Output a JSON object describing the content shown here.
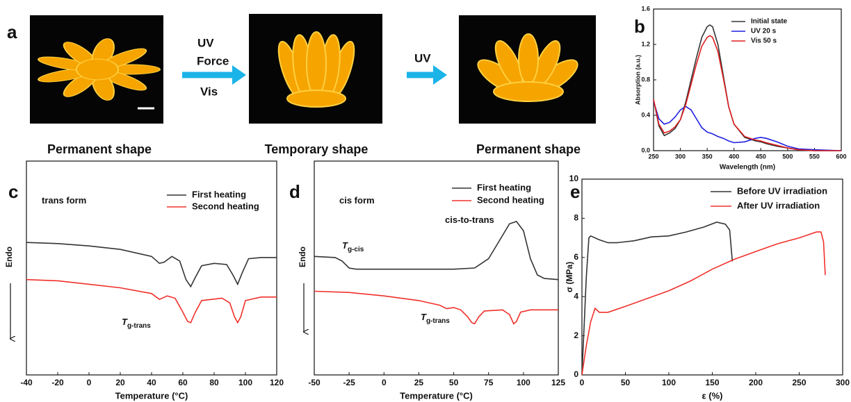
{
  "panel_a": {
    "label": "a",
    "photos": [
      {
        "caption": "Permanent shape"
      },
      {
        "caption": "Temporary shape"
      },
      {
        "caption": "Permanent shape"
      }
    ],
    "arrows": [
      {
        "labels": [
          "UV",
          "Force",
          "Vis"
        ]
      },
      {
        "labels": [
          "UV"
        ]
      }
    ]
  },
  "chart_data": [
    {
      "type": "line",
      "label": "b",
      "xlabel": "Wavelength (nm)",
      "ylabel": "Absorption (a.u.)",
      "x": [
        250,
        260,
        270,
        280,
        290,
        300,
        310,
        320,
        330,
        340,
        350,
        355,
        360,
        370,
        380,
        390,
        400,
        420,
        440,
        450,
        460,
        480,
        500,
        520,
        550,
        600
      ],
      "series": [
        {
          "name": "Initial state",
          "color": "#333333",
          "values": [
            0.58,
            0.28,
            0.17,
            0.2,
            0.25,
            0.35,
            0.55,
            0.8,
            1.05,
            1.28,
            1.4,
            1.42,
            1.4,
            1.2,
            0.85,
            0.5,
            0.3,
            0.15,
            0.11,
            0.1,
            0.08,
            0.05,
            0.03,
            0.01,
            0,
            0
          ]
        },
        {
          "name": "UV 20 s",
          "color": "#1f1fe0",
          "values": [
            0.56,
            0.36,
            0.3,
            0.32,
            0.38,
            0.46,
            0.5,
            0.46,
            0.36,
            0.26,
            0.21,
            0.2,
            0.19,
            0.16,
            0.14,
            0.11,
            0.09,
            0.1,
            0.14,
            0.15,
            0.14,
            0.1,
            0.05,
            0.02,
            0.01,
            0
          ]
        },
        {
          "name": "Vis 50 s",
          "color": "#e01f1f",
          "values": [
            0.58,
            0.3,
            0.2,
            0.22,
            0.27,
            0.35,
            0.52,
            0.75,
            0.98,
            1.18,
            1.28,
            1.3,
            1.28,
            1.12,
            0.82,
            0.5,
            0.3,
            0.16,
            0.12,
            0.11,
            0.09,
            0.06,
            0.03,
            0.01,
            0,
            0
          ]
        }
      ],
      "xlim": [
        250,
        600
      ],
      "xticks": [
        250,
        300,
        350,
        400,
        450,
        500,
        550,
        600
      ],
      "ylim": [
        0,
        1.6
      ],
      "yticks": [
        {
          "value": 0,
          "label": "0.0"
        },
        {
          "value": 0.4,
          "label": "0.4"
        },
        {
          "value": 0.8,
          "label": "0.8"
        },
        {
          "value": 1.2,
          "label": "1.2"
        },
        {
          "value": 1.6,
          "label": "1.6"
        }
      ],
      "legend": "upper right"
    },
    {
      "type": "line",
      "label": "c",
      "xlabel": "Temperature (°C)",
      "ylabel": "Endo",
      "series": [
        {
          "name": "First heating",
          "color": "#333333",
          "x": [
            -40,
            -20,
            0,
            20,
            40,
            45,
            48,
            53,
            58,
            62,
            65,
            68,
            72,
            80,
            88,
            92,
            95,
            98,
            102,
            110,
            120
          ],
          "values": [
            6.5,
            6.45,
            6.35,
            6.2,
            5.9,
            5.6,
            5.65,
            5.9,
            5.7,
            4.9,
            4.6,
            5.0,
            5.5,
            5.6,
            5.55,
            5.1,
            4.7,
            5.2,
            5.8,
            5.85,
            5.85
          ]
        },
        {
          "name": "Second heating",
          "color": "#f0302a",
          "x": [
            -40,
            -20,
            0,
            20,
            40,
            45,
            50,
            55,
            60,
            63,
            65,
            68,
            72,
            85,
            90,
            93,
            95,
            97,
            100,
            110,
            120
          ],
          "values": [
            4.9,
            4.85,
            4.7,
            4.55,
            4.3,
            4.05,
            4.2,
            4.1,
            3.5,
            3.1,
            3.05,
            3.5,
            4.0,
            4.1,
            3.9,
            3.3,
            3.05,
            3.3,
            4.0,
            4.15,
            4.15
          ]
        }
      ],
      "xlim": [
        -40,
        120
      ],
      "xticks": [
        -40,
        -20,
        0,
        20,
        40,
        60,
        80,
        100,
        120
      ],
      "ylim": [
        0.8,
        10
      ],
      "annotations": [
        {
          "text": "trans form"
        },
        {
          "text": "T",
          "subscript": "g-trans"
        }
      ],
      "legend": "upper right"
    },
    {
      "type": "line",
      "label": "d",
      "xlabel": "Temperature (°C)",
      "ylabel": "Endo",
      "series": [
        {
          "name": "First heating",
          "color": "#333333",
          "x": [
            -50,
            -35,
            -30,
            -25,
            -20,
            0,
            25,
            50,
            65,
            75,
            85,
            90,
            95,
            100,
            105,
            110,
            115,
            125
          ],
          "values": [
            5.9,
            5.85,
            5.7,
            5.4,
            5.35,
            5.35,
            5.35,
            5.35,
            5.4,
            5.8,
            6.8,
            7.3,
            7.4,
            7.0,
            5.8,
            5.1,
            4.95,
            4.9
          ]
        },
        {
          "name": "Second heating",
          "color": "#f0302a",
          "x": [
            -50,
            -25,
            0,
            25,
            40,
            45,
            50,
            55,
            60,
            63,
            65,
            68,
            72,
            85,
            90,
            93,
            95,
            98,
            105,
            125
          ],
          "values": [
            4.4,
            4.35,
            4.2,
            4.0,
            3.8,
            3.65,
            3.7,
            3.6,
            3.3,
            3.05,
            3.0,
            3.3,
            3.55,
            3.6,
            3.4,
            3.0,
            3.1,
            3.5,
            3.6,
            3.6
          ]
        }
      ],
      "xlim": [
        -50,
        125
      ],
      "xticks": [
        -50,
        -25,
        0,
        25,
        50,
        75,
        100,
        125
      ],
      "ylim": [
        0.8,
        10
      ],
      "annotations": [
        {
          "text": "cis form"
        },
        {
          "text": "cis-to-trans"
        },
        {
          "text": "T",
          "subscript": "g-cis"
        },
        {
          "text": "T",
          "subscript": "g-trans"
        }
      ],
      "legend": "upper right"
    },
    {
      "type": "line",
      "label": "e",
      "xlabel": "ε (%)",
      "ylabel": "σ (MPa)",
      "series": [
        {
          "name": "Before UV irradiation",
          "color": "#333333",
          "x": [
            0,
            5,
            8,
            10,
            20,
            30,
            40,
            60,
            80,
            100,
            120,
            140,
            155,
            165,
            170,
            173
          ],
          "values": [
            0,
            5,
            7,
            7.1,
            6.9,
            6.75,
            6.75,
            6.85,
            7.05,
            7.1,
            7.3,
            7.55,
            7.8,
            7.7,
            7.4,
            5.8
          ]
        },
        {
          "name": "After UV irradiation",
          "color": "#f0302a",
          "x": [
            0,
            5,
            10,
            15,
            20,
            30,
            50,
            75,
            100,
            125,
            150,
            175,
            200,
            225,
            250,
            270,
            275,
            278,
            280
          ],
          "values": [
            0,
            1.5,
            2.7,
            3.4,
            3.2,
            3.2,
            3.5,
            3.9,
            4.3,
            4.8,
            5.4,
            5.9,
            6.3,
            6.7,
            7.0,
            7.3,
            7.3,
            6.8,
            5.1
          ]
        }
      ],
      "xlim": [
        0,
        300
      ],
      "xticks": [
        0,
        50,
        100,
        150,
        200,
        250,
        300
      ],
      "ylim": [
        0,
        10
      ],
      "yticks": [
        0,
        2,
        4,
        6,
        8,
        10
      ],
      "legend": "upper right"
    }
  ]
}
